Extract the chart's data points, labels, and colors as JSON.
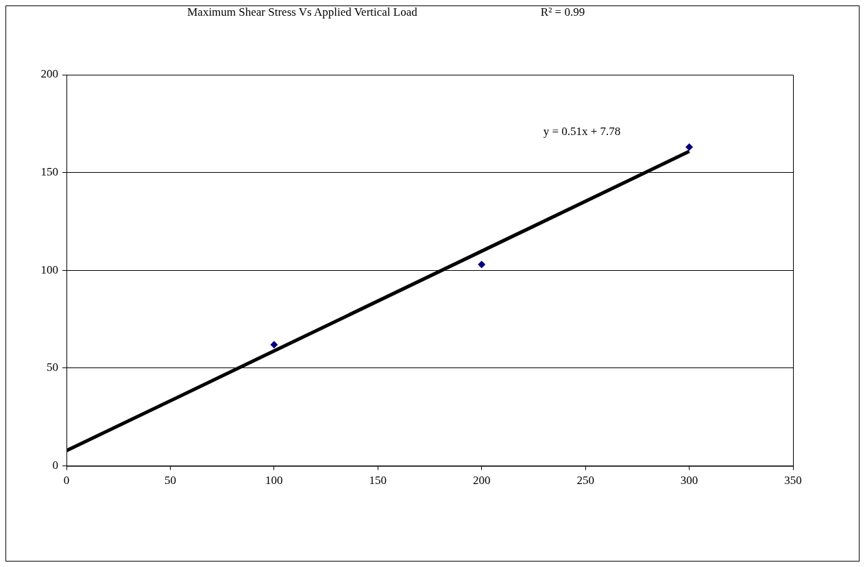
{
  "chart_data": {
    "type": "scatter",
    "title": "Maximum Shear Stress Vs Applied Vertical Load",
    "annotations": [
      "R² = 0.99",
      "y = 0.51x + 7.78"
    ],
    "x": [
      100,
      200,
      300
    ],
    "series": [
      {
        "type": "scatter",
        "color": "#000080",
        "marker": "diamond",
        "values": [
          62,
          103,
          163
        ]
      },
      {
        "type": "line",
        "color": "#000000",
        "marker": "none",
        "line_style": "solid",
        "x": [
          0,
          300
        ],
        "values": [
          7.8,
          160.8
        ]
      }
    ],
    "xlim": [
      0,
      350
    ],
    "xticks": [
      0,
      50,
      100,
      150,
      200,
      250,
      300,
      350
    ],
    "ylim": [
      0,
      200
    ],
    "yticks": [
      0,
      50,
      100,
      150,
      200
    ],
    "grid": "y",
    "legend": false
  }
}
